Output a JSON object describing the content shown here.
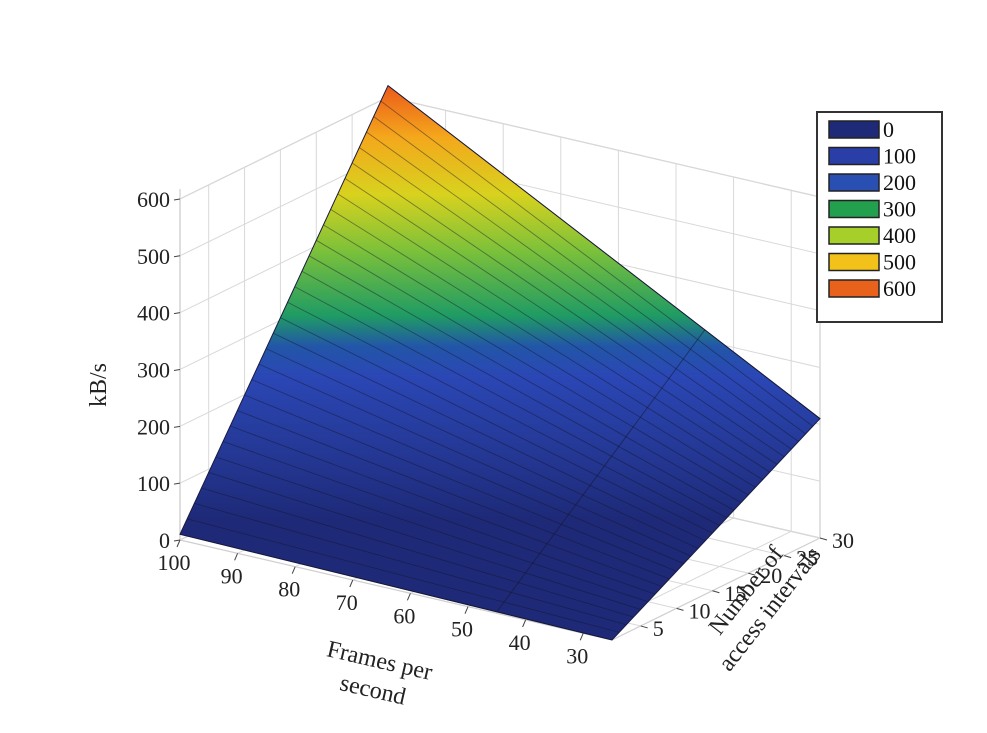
{
  "chart_data": {
    "type": "surface3d",
    "x_axis": {
      "label_lines": [
        "Frames per",
        "second"
      ],
      "ticks": [
        100,
        90,
        80,
        70,
        60,
        50,
        40,
        30
      ],
      "range": [
        100,
        25
      ]
    },
    "y_axis": {
      "label_lines": [
        "Number of",
        "access intervals"
      ],
      "ticks": [
        5,
        10,
        15,
        20,
        25,
        30
      ],
      "range": [
        1,
        30
      ]
    },
    "z_axis": {
      "label": "kB/s",
      "ticks": [
        0,
        100,
        200,
        300,
        400,
        500,
        600
      ],
      "range": [
        0,
        600
      ]
    },
    "surface": {
      "corners": [
        {
          "fps": 100,
          "intervals": 1,
          "kbps": 10
        },
        {
          "fps": 25,
          "intervals": 1,
          "kbps": 0
        },
        {
          "fps": 25,
          "intervals": 30,
          "kbps": 210
        },
        {
          "fps": 100,
          "intervals": 30,
          "kbps": 620
        }
      ]
    },
    "legend": {
      "position": "right",
      "entries": [
        {
          "label": "0",
          "color": "#1e2a78"
        },
        {
          "label": "100",
          "color": "#2a3ea8"
        },
        {
          "label": "200",
          "color": "#2a4fb2"
        },
        {
          "label": "300",
          "color": "#23a04e"
        },
        {
          "label": "400",
          "color": "#a6cf2a"
        },
        {
          "label": "500",
          "color": "#f2c21a"
        },
        {
          "label": "600",
          "color": "#e8621c"
        }
      ]
    },
    "grid": true
  }
}
